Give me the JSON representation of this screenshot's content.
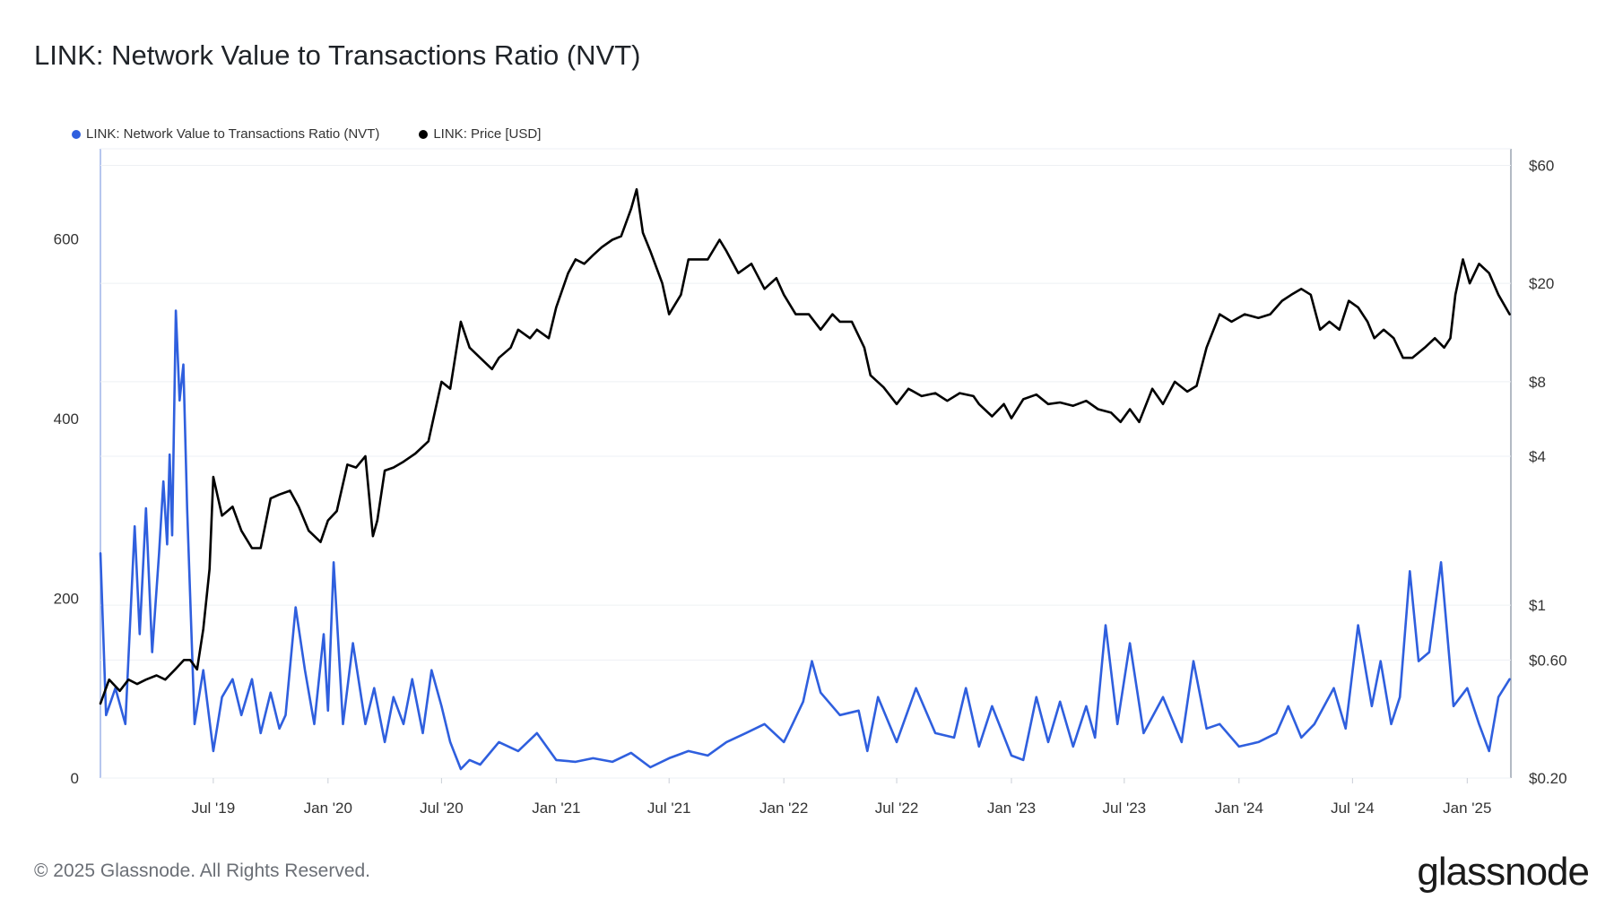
{
  "title": "LINK: Network Value to Transactions Ratio (NVT)",
  "legend": [
    {
      "label": "LINK: Network Value to Transactions Ratio (NVT)",
      "color": "#2f5fde"
    },
    {
      "label": "LINK: Price [USD]",
      "color": "#000000"
    }
  ],
  "footer": "© 2025 Glassnode. All Rights Reserved.",
  "brand": "glassnode",
  "chart_data": {
    "type": "line",
    "x_ticks": [
      "Jul '19",
      "Jan '20",
      "Jul '20",
      "Jan '21",
      "Jul '21",
      "Jan '22",
      "Jul '22",
      "Jan '23",
      "Jul '23",
      "Jan '24",
      "Jul '24",
      "Jan '25"
    ],
    "y_left_ticks": [
      "0",
      "200",
      "400",
      "600"
    ],
    "y_left_range": [
      0,
      700
    ],
    "y_right_ticks": [
      "$0.20",
      "$0.60",
      "$1",
      "$4",
      "$8",
      "$20",
      "$60"
    ],
    "y_right_scale": "log",
    "grid": true,
    "legend_position": "top-left",
    "series": [
      {
        "name": "LINK: Network Value to Transactions Ratio (NVT)",
        "axis": "left",
        "color": "#2f5fde",
        "x": [
          "2019-01-01",
          "2019-01-10",
          "2019-01-25",
          "2019-02-10",
          "2019-02-25",
          "2019-03-05",
          "2019-03-15",
          "2019-03-25",
          "2019-04-05",
          "2019-04-12",
          "2019-04-18",
          "2019-04-22",
          "2019-04-26",
          "2019-05-02",
          "2019-05-08",
          "2019-05-14",
          "2019-05-20",
          "2019-06-01",
          "2019-06-15",
          "2019-07-01",
          "2019-07-15",
          "2019-08-01",
          "2019-08-15",
          "2019-09-01",
          "2019-09-15",
          "2019-10-01",
          "2019-10-15",
          "2019-10-25",
          "2019-11-10",
          "2019-11-25",
          "2019-12-10",
          "2019-12-25",
          "2020-01-01",
          "2020-01-10",
          "2020-01-25",
          "2020-02-10",
          "2020-03-01",
          "2020-03-15",
          "2020-04-01",
          "2020-04-15",
          "2020-05-01",
          "2020-05-15",
          "2020-06-01",
          "2020-06-15",
          "2020-07-01",
          "2020-07-15",
          "2020-08-01",
          "2020-08-15",
          "2020-09-01",
          "2020-10-01",
          "2020-11-01",
          "2020-12-01",
          "2021-01-01",
          "2021-02-01",
          "2021-03-01",
          "2021-04-01",
          "2021-05-01",
          "2021-06-01",
          "2021-07-01",
          "2021-08-01",
          "2021-09-01",
          "2021-10-01",
          "2021-11-01",
          "2021-12-01",
          "2022-01-01",
          "2022-01-15",
          "2022-02-01",
          "2022-02-15",
          "2022-03-01",
          "2022-04-01",
          "2022-05-01",
          "2022-05-15",
          "2022-06-01",
          "2022-07-01",
          "2022-08-01",
          "2022-09-01",
          "2022-10-01",
          "2022-10-20",
          "2022-11-10",
          "2022-12-01",
          "2023-01-01",
          "2023-01-20",
          "2023-02-10",
          "2023-03-01",
          "2023-03-20",
          "2023-04-10",
          "2023-05-01",
          "2023-05-15",
          "2023-06-01",
          "2023-06-20",
          "2023-07-10",
          "2023-08-01",
          "2023-09-01",
          "2023-10-01",
          "2023-10-20",
          "2023-11-10",
          "2023-12-01",
          "2024-01-01",
          "2024-02-01",
          "2024-03-01",
          "2024-03-20",
          "2024-04-10",
          "2024-05-01",
          "2024-06-01",
          "2024-06-20",
          "2024-07-10",
          "2024-08-01",
          "2024-08-15",
          "2024-09-01",
          "2024-09-15",
          "2024-10-01",
          "2024-10-15",
          "2024-11-01",
          "2024-11-20",
          "2024-12-10",
          "2025-01-01",
          "2025-01-20",
          "2025-02-05",
          "2025-02-20",
          "2025-03-10"
        ],
        "y": [
          250,
          70,
          100,
          60,
          280,
          160,
          300,
          140,
          250,
          330,
          260,
          360,
          270,
          520,
          420,
          460,
          300,
          60,
          120,
          30,
          90,
          110,
          70,
          110,
          50,
          95,
          55,
          70,
          190,
          120,
          60,
          160,
          75,
          240,
          60,
          150,
          60,
          100,
          40,
          90,
          60,
          110,
          50,
          120,
          80,
          40,
          10,
          20,
          15,
          40,
          30,
          50,
          20,
          18,
          22,
          18,
          28,
          12,
          22,
          30,
          25,
          40,
          50,
          60,
          40,
          60,
          85,
          130,
          95,
          70,
          75,
          30,
          90,
          40,
          100,
          50,
          45,
          100,
          35,
          80,
          25,
          20,
          90,
          40,
          85,
          35,
          80,
          45,
          170,
          60,
          150,
          50,
          90,
          40,
          130,
          55,
          60,
          35,
          40,
          50,
          80,
          45,
          60,
          100,
          55,
          170,
          80,
          130,
          60,
          90,
          230,
          130,
          140,
          240,
          80,
          100,
          60,
          30,
          90,
          110
        ]
      },
      {
        "name": "LINK: Price [USD]",
        "axis": "right",
        "color": "#000000",
        "x": [
          "2019-01-01",
          "2019-01-15",
          "2019-02-01",
          "2019-02-15",
          "2019-03-01",
          "2019-03-15",
          "2019-04-01",
          "2019-04-15",
          "2019-05-01",
          "2019-05-15",
          "2019-05-25",
          "2019-06-05",
          "2019-06-15",
          "2019-06-25",
          "2019-07-01",
          "2019-07-15",
          "2019-08-01",
          "2019-08-15",
          "2019-09-01",
          "2019-09-15",
          "2019-10-01",
          "2019-10-15",
          "2019-11-01",
          "2019-11-15",
          "2019-12-01",
          "2019-12-20",
          "2020-01-01",
          "2020-01-15",
          "2020-02-01",
          "2020-02-15",
          "2020-03-01",
          "2020-03-13",
          "2020-03-20",
          "2020-04-01",
          "2020-04-15",
          "2020-05-01",
          "2020-05-20",
          "2020-06-10",
          "2020-07-01",
          "2020-07-15",
          "2020-08-01",
          "2020-08-15",
          "2020-09-01",
          "2020-09-20",
          "2020-10-01",
          "2020-10-20",
          "2020-11-01",
          "2020-11-20",
          "2020-12-01",
          "2020-12-20",
          "2021-01-01",
          "2021-01-20",
          "2021-02-01",
          "2021-02-15",
          "2021-03-01",
          "2021-03-15",
          "2021-04-01",
          "2021-04-15",
          "2021-05-01",
          "2021-05-10",
          "2021-05-20",
          "2021-06-01",
          "2021-06-20",
          "2021-07-01",
          "2021-07-20",
          "2021-08-01",
          "2021-08-20",
          "2021-09-01",
          "2021-09-20",
          "2021-10-01",
          "2021-10-20",
          "2021-11-10",
          "2021-12-01",
          "2021-12-20",
          "2022-01-01",
          "2022-01-20",
          "2022-02-10",
          "2022-03-01",
          "2022-03-20",
          "2022-04-01",
          "2022-04-20",
          "2022-05-10",
          "2022-05-20",
          "2022-06-10",
          "2022-07-01",
          "2022-07-20",
          "2022-08-10",
          "2022-09-01",
          "2022-09-20",
          "2022-10-10",
          "2022-11-01",
          "2022-11-10",
          "2022-12-01",
          "2022-12-20",
          "2023-01-01",
          "2023-01-20",
          "2023-02-10",
          "2023-03-01",
          "2023-03-20",
          "2023-04-10",
          "2023-05-01",
          "2023-05-20",
          "2023-06-10",
          "2023-06-25",
          "2023-07-10",
          "2023-07-25",
          "2023-08-15",
          "2023-09-01",
          "2023-09-20",
          "2023-10-10",
          "2023-10-25",
          "2023-11-10",
          "2023-12-01",
          "2023-12-20",
          "2024-01-10",
          "2024-02-01",
          "2024-02-20",
          "2024-03-10",
          "2024-03-25",
          "2024-04-10",
          "2024-04-25",
          "2024-05-10",
          "2024-05-25",
          "2024-06-10",
          "2024-06-25",
          "2024-07-10",
          "2024-07-25",
          "2024-08-05",
          "2024-08-20",
          "2024-09-05",
          "2024-09-20",
          "2024-10-05",
          "2024-10-25",
          "2024-11-10",
          "2024-11-25",
          "2024-12-05",
          "2024-12-13",
          "2024-12-25",
          "2025-01-05",
          "2025-01-20",
          "2025-02-05",
          "2025-02-20",
          "2025-03-10"
        ],
        "y": [
          0.4,
          0.5,
          0.45,
          0.5,
          0.48,
          0.5,
          0.52,
          0.5,
          0.55,
          0.6,
          0.6,
          0.55,
          0.8,
          1.4,
          3.3,
          2.3,
          2.5,
          2.0,
          1.7,
          1.7,
          2.7,
          2.8,
          2.9,
          2.5,
          2.0,
          1.8,
          2.2,
          2.4,
          3.7,
          3.6,
          4.0,
          1.9,
          2.2,
          3.5,
          3.6,
          3.8,
          4.1,
          4.6,
          8.0,
          7.5,
          14,
          11,
          10,
          9,
          10,
          11,
          13,
          12,
          13,
          12,
          16,
          22,
          25,
          24,
          26,
          28,
          30,
          31,
          40,
          48,
          32,
          27,
          20,
          15,
          18,
          25,
          25,
          25,
          30,
          27,
          22,
          24,
          19,
          21,
          18,
          15,
          15,
          13,
          15,
          14,
          14,
          11,
          8.5,
          7.6,
          6.5,
          7.5,
          7,
          7.2,
          6.7,
          7.2,
          7.0,
          6.5,
          5.8,
          6.5,
          5.7,
          6.8,
          7.1,
          6.5,
          6.6,
          6.4,
          6.7,
          6.2,
          6.0,
          5.5,
          6.2,
          5.5,
          7.5,
          6.5,
          8.0,
          7.3,
          7.7,
          11,
          15,
          14,
          15,
          14.5,
          15,
          17,
          18,
          19,
          18,
          13,
          14,
          13,
          17,
          16,
          14,
          12,
          13,
          12,
          10,
          10,
          11,
          12,
          11,
          12,
          18,
          25,
          20,
          24,
          22,
          18,
          15
        ]
      }
    ]
  }
}
